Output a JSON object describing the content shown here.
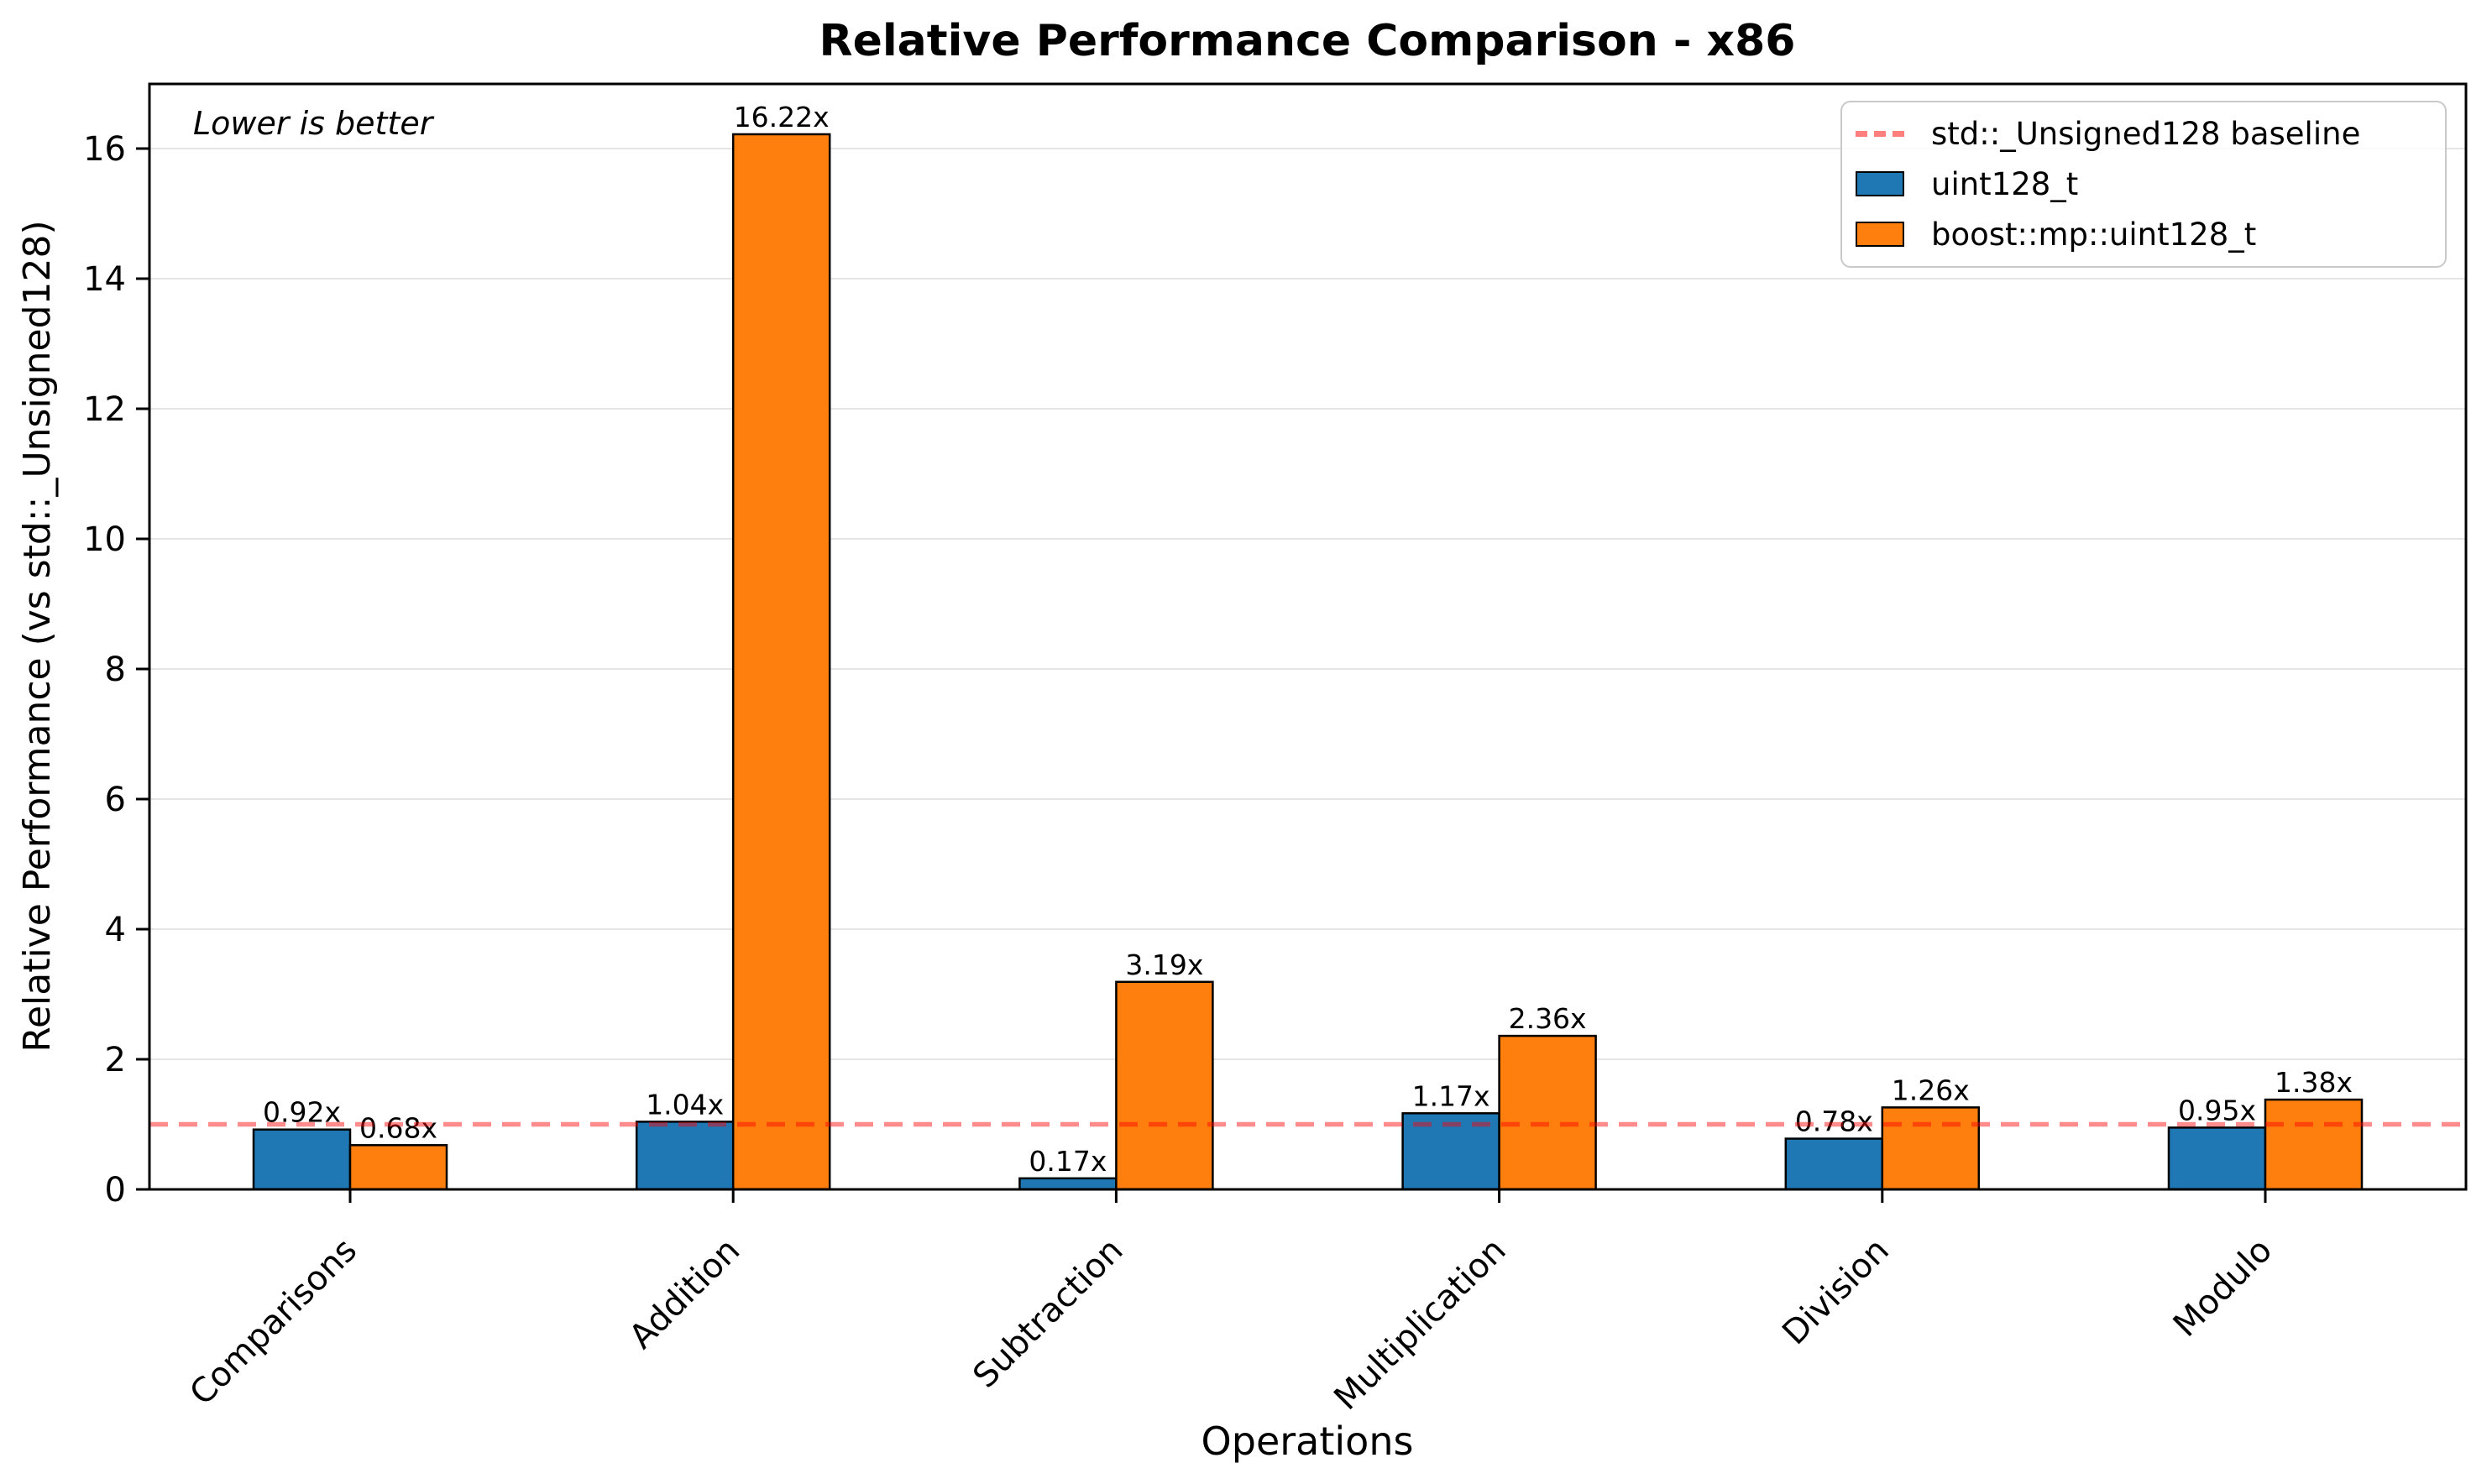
{
  "chart_data": {
    "type": "bar",
    "title": "Relative Performance Comparison - x86",
    "xlabel": "Operations",
    "ylabel": "Relative Performance (vs std::_Unsigned128)",
    "annotation": "Lower is better",
    "categories": [
      "Comparisons",
      "Addition",
      "Subtraction",
      "Multiplication",
      "Division",
      "Modulo"
    ],
    "series": [
      {
        "name": "uint128_t",
        "color": "#1f77b4",
        "values": [
          0.92,
          1.04,
          0.17,
          1.17,
          0.78,
          0.95
        ],
        "labels": [
          "0.92x",
          "1.04x",
          "0.17x",
          "1.17x",
          "0.78x",
          "0.95x"
        ]
      },
      {
        "name": "boost::mp::uint128_t",
        "color": "#ff7f0e",
        "values": [
          0.68,
          16.22,
          3.19,
          2.36,
          1.26,
          1.38
        ],
        "labels": [
          "0.68x",
          "16.22x",
          "3.19x",
          "2.36x",
          "1.26x",
          "1.38x"
        ]
      }
    ],
    "baseline": {
      "value": 1.0,
      "label": "std::_Unsigned128 baseline",
      "color": "#ff0000",
      "alpha": 0.45,
      "style": "dashed"
    },
    "y_ticks": [
      0,
      2,
      4,
      6,
      8,
      10,
      12,
      14,
      16
    ],
    "ylim": [
      0,
      17.0
    ],
    "grid": true,
    "grid_color": "#e5e5e5",
    "bar_edge_color": "#000000",
    "legend_position": "upper right"
  }
}
